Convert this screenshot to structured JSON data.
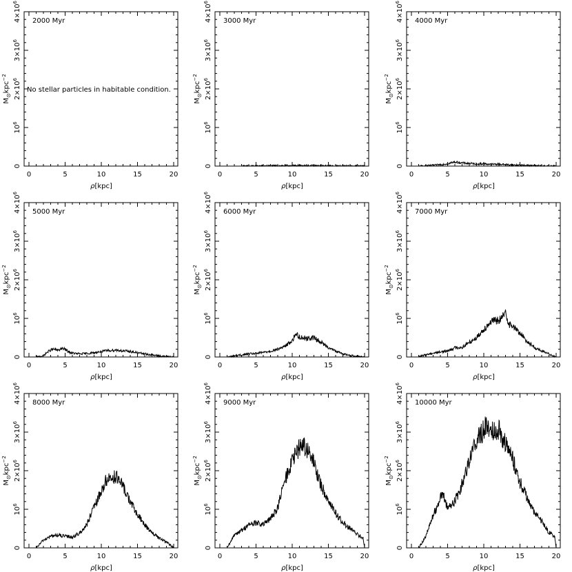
{
  "figure": {
    "xlabel_prefix": "ρ",
    "xlabel_unit": "[kpc]",
    "ylabel_main": "M",
    "ylabel_sub": "⊙",
    "ylabel_rest": "kpc",
    "ylabel_sup": "−2",
    "ytick_main": [
      "0",
      "10",
      "2×10",
      "3×10",
      "4×10"
    ],
    "ytick_exp": [
      "",
      "6",
      "6",
      "6",
      "6"
    ],
    "xticks": [
      "0",
      "5",
      "10",
      "15",
      "20"
    ]
  },
  "chart_data": [
    {
      "type": "line",
      "title": "2000 Myr",
      "xlim": [
        0,
        20
      ],
      "ylim": [
        0,
        4000000
      ],
      "annotation": "No stellar particles in habitable condition.",
      "x": [],
      "y": []
    },
    {
      "type": "line",
      "title": "3000 Myr",
      "xlim": [
        0,
        20
      ],
      "ylim": [
        0,
        4000000
      ],
      "x": [
        1,
        3,
        5,
        7,
        9,
        11,
        13,
        15,
        17,
        19,
        20
      ],
      "y": [
        0,
        0,
        5000,
        8000,
        12000,
        15000,
        12000,
        8000,
        4000,
        2000,
        0
      ]
    },
    {
      "type": "line",
      "title": "4000 Myr",
      "xlim": [
        0,
        20
      ],
      "ylim": [
        0,
        4000000
      ],
      "x": [
        1,
        2,
        3,
        4,
        5,
        5.5,
        6,
        6.5,
        7,
        8,
        9,
        10,
        11,
        12,
        13,
        14,
        15,
        16,
        17,
        18,
        19,
        20
      ],
      "y": [
        0,
        10000,
        20000,
        40000,
        60000,
        85000,
        105000,
        95000,
        80000,
        70000,
        55000,
        60000,
        45000,
        50000,
        40000,
        30000,
        25000,
        15000,
        10000,
        5000,
        2000,
        0
      ]
    },
    {
      "type": "line",
      "title": "5000 Myr",
      "xlim": [
        0,
        20
      ],
      "ylim": [
        0,
        4000000
      ],
      "x": [
        1,
        2,
        2.5,
        3,
        3.5,
        4,
        4.5,
        5,
        5.5,
        6,
        7,
        8,
        9,
        10,
        11,
        12,
        13,
        14,
        15,
        16,
        17,
        18,
        19,
        20
      ],
      "y": [
        0,
        30000,
        120000,
        180000,
        200000,
        170000,
        220000,
        200000,
        130000,
        100000,
        80000,
        90000,
        110000,
        140000,
        170000,
        180000,
        160000,
        140000,
        110000,
        80000,
        50000,
        30000,
        10000,
        0
      ]
    },
    {
      "type": "line",
      "title": "6000 Myr",
      "xlim": [
        0,
        20
      ],
      "ylim": [
        0,
        4000000
      ],
      "x": [
        1,
        2,
        3,
        4,
        5,
        6,
        7,
        8,
        9,
        10,
        10.5,
        11,
        12,
        13,
        14,
        15,
        16,
        17,
        18,
        19,
        20
      ],
      "y": [
        0,
        30000,
        50000,
        80000,
        90000,
        120000,
        150000,
        200000,
        280000,
        420000,
        600000,
        520000,
        480000,
        500000,
        380000,
        250000,
        150000,
        80000,
        40000,
        20000,
        0
      ]
    },
    {
      "type": "line",
      "title": "7000 Myr",
      "xlim": [
        0,
        20
      ],
      "ylim": [
        0,
        4000000
      ],
      "x": [
        1,
        2,
        3,
        4,
        5,
        6,
        7,
        8,
        9,
        10,
        11,
        12,
        12.5,
        13,
        13.5,
        14,
        15,
        16,
        17,
        18,
        19,
        20
      ],
      "y": [
        0,
        60000,
        100000,
        130000,
        160000,
        240000,
        250000,
        380000,
        500000,
        720000,
        920000,
        950000,
        1000000,
        1150000,
        850000,
        800000,
        620000,
        400000,
        250000,
        150000,
        80000,
        0
      ]
    },
    {
      "type": "line",
      "title": "8000 Myr",
      "xlim": [
        0,
        20
      ],
      "ylim": [
        0,
        4000000
      ],
      "x": [
        1,
        2,
        3,
        4,
        5,
        6,
        7,
        8,
        9,
        10,
        10.5,
        11,
        12,
        13,
        14,
        15,
        16,
        17,
        18,
        19,
        20
      ],
      "y": [
        0,
        200000,
        300000,
        330000,
        300000,
        280000,
        380000,
        600000,
        1050000,
        1450000,
        1700000,
        1800000,
        1850000,
        1600000,
        1200000,
        850000,
        600000,
        400000,
        250000,
        150000,
        0
      ]
    },
    {
      "type": "line",
      "title": "9000 Myr",
      "xlim": [
        0,
        20
      ],
      "ylim": [
        0,
        4000000
      ],
      "x": [
        1,
        1.5,
        2,
        3,
        4,
        5,
        6,
        7,
        8,
        9,
        10,
        11,
        11.5,
        12,
        13,
        14,
        15,
        16,
        17,
        18,
        19,
        19.8,
        20
      ],
      "y": [
        0,
        150000,
        350000,
        450000,
        600000,
        650000,
        600000,
        750000,
        1050000,
        1750000,
        2250000,
        2600000,
        2700000,
        2550000,
        2200000,
        1600000,
        1250000,
        900000,
        650000,
        500000,
        350000,
        250000,
        0
      ]
    },
    {
      "type": "line",
      "title": "10000 Myr",
      "xlim": [
        0,
        20
      ],
      "ylim": [
        0,
        4000000
      ],
      "x": [
        1,
        2,
        3,
        3.5,
        4,
        4.5,
        5,
        6,
        7,
        8,
        9,
        10,
        10.5,
        11,
        12,
        13,
        14,
        15,
        16,
        17,
        18,
        19,
        19.8,
        20
      ],
      "y": [
        0,
        300000,
        850000,
        1050000,
        1350000,
        1300000,
        1050000,
        1200000,
        1650000,
        2300000,
        2800000,
        3050000,
        3200000,
        3050000,
        3100000,
        2700000,
        2300000,
        1700000,
        1300000,
        900000,
        700000,
        400000,
        300000,
        0
      ]
    }
  ]
}
